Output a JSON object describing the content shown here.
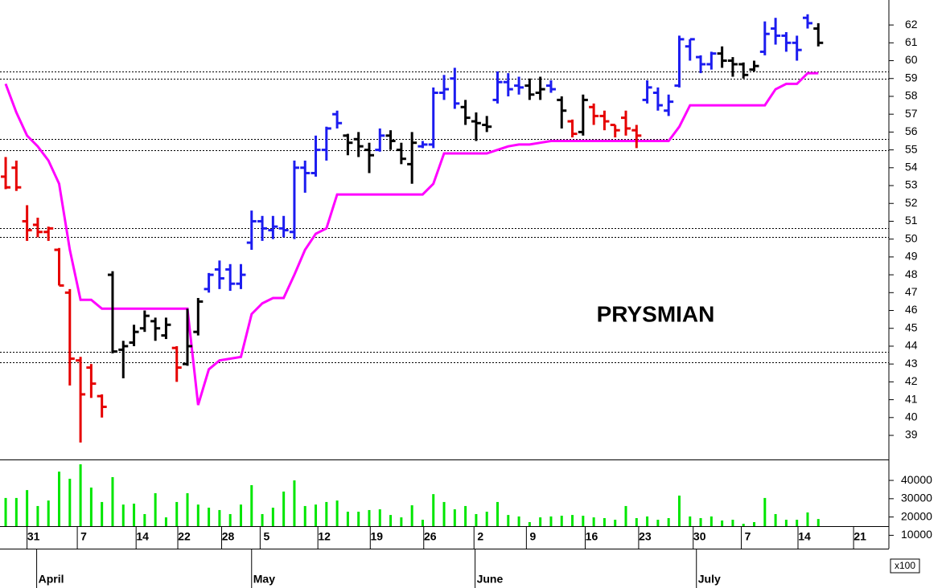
{
  "chart_data": {
    "type": "ohlc",
    "title": "PRYSMIAN",
    "open": [
      53.5,
      54.0,
      51.0,
      50.8,
      50.4,
      49.4,
      47.0,
      43.2,
      42.8,
      41.2,
      48.0,
      43.8,
      44.2,
      45.0,
      45.4,
      44.6,
      43.9,
      43.0,
      44.8,
      47.2,
      48.3,
      48.3,
      47.5,
      49.8,
      51.0,
      50.5,
      50.6,
      50.4,
      54.0,
      53.7,
      55.0,
      57.0,
      55.8,
      55.6,
      55.0,
      55.0,
      55.8,
      55.0,
      54.2,
      55.2,
      55.3,
      58.2,
      59.0,
      57.4,
      56.6,
      56.4,
      57.8,
      58.8,
      58.6,
      58.6,
      58.2,
      58.6,
      57.8,
      56.6,
      56.0,
      57.4,
      56.9,
      56.4,
      56.8,
      56.1,
      57.8,
      58.2,
      57.2,
      58.6,
      60.8,
      60.2,
      59.8,
      60.4,
      60.0,
      59.8,
      59.5,
      60.5,
      61.8,
      61.4,
      61.0,
      62.4,
      61.8
    ],
    "high": [
      54.6,
      54.4,
      51.9,
      51.2,
      50.7,
      49.5,
      47.2,
      43.4,
      43.0,
      41.3,
      48.2,
      44.3,
      45.2,
      46.0,
      45.6,
      45.6,
      44.0,
      46.1,
      46.7,
      48.1,
      48.8,
      48.6,
      48.6,
      51.6,
      51.3,
      51.3,
      51.3,
      54.4,
      54.4,
      55.8,
      56.3,
      57.2,
      55.9,
      56.0,
      55.4,
      56.2,
      56.1,
      55.4,
      56.0,
      55.5,
      58.5,
      59.2,
      59.6,
      57.8,
      57.1,
      56.9,
      59.4,
      59.3,
      59.1,
      59.0,
      59.1,
      58.9,
      58.0,
      56.7,
      58.1,
      57.6,
      57.2,
      56.4,
      57.2,
      56.4,
      58.9,
      58.5,
      58.1,
      61.4,
      61.2,
      60.3,
      60.5,
      60.8,
      60.2,
      59.9,
      60.0,
      62.2,
      62.4,
      61.6,
      61.4,
      62.6,
      62.1
    ],
    "low": [
      52.8,
      52.7,
      49.9,
      50.1,
      49.9,
      47.4,
      41.8,
      38.6,
      41.1,
      40.0,
      43.6,
      42.2,
      44.0,
      44.8,
      44.3,
      44.4,
      42.0,
      42.9,
      44.6,
      47.0,
      47.2,
      47.1,
      47.2,
      49.4,
      49.9,
      50.0,
      50.1,
      50.0,
      52.6,
      53.5,
      54.4,
      56.2,
      54.7,
      54.6,
      53.7,
      54.9,
      55.0,
      54.2,
      53.1,
      55.1,
      55.1,
      57.8,
      57.3,
      56.4,
      55.5,
      56.0,
      57.6,
      58.0,
      58.1,
      57.8,
      57.8,
      58.2,
      56.2,
      55.7,
      55.8,
      56.4,
      56.1,
      55.7,
      55.8,
      55.1,
      57.6,
      57.2,
      56.9,
      58.5,
      60.0,
      59.3,
      59.5,
      59.6,
      59.1,
      59.0,
      59.4,
      60.3,
      60.9,
      60.5,
      60.0,
      61.8,
      60.8
    ],
    "close": [
      52.9,
      52.9,
      50.5,
      50.4,
      50.6,
      47.4,
      43.3,
      41.3,
      41.9,
      40.6,
      43.7,
      44.0,
      44.8,
      45.7,
      45.0,
      45.2,
      42.8,
      44.0,
      46.5,
      48.0,
      47.8,
      47.5,
      48.0,
      51.0,
      50.6,
      50.7,
      50.5,
      54.0,
      53.7,
      55.0,
      56.2,
      56.5,
      55.4,
      55.2,
      54.7,
      55.8,
      55.5,
      54.5,
      55.4,
      55.3,
      58.2,
      58.4,
      57.6,
      56.8,
      56.5,
      56.3,
      58.8,
      58.4,
      58.5,
      58.1,
      58.4,
      58.4,
      57.2,
      55.9,
      57.8,
      56.9,
      56.6,
      56.1,
      56.2,
      55.8,
      58.5,
      57.5,
      57.7,
      61.2,
      61.2,
      59.8,
      60.4,
      60.0,
      59.8,
      59.2,
      59.7,
      61.5,
      61.4,
      61.0,
      60.6,
      62.1,
      61.0
    ],
    "bar_colors": [
      "#e60000",
      "#e60000",
      "#e60000",
      "#e60000",
      "#e60000",
      "#e60000",
      "#e60000",
      "#e60000",
      "#e60000",
      "#e60000",
      "#000000",
      "#000000",
      "#000000",
      "#000000",
      "#000000",
      "#000000",
      "#e60000",
      "#000000",
      "#000000",
      "#1c1cf0",
      "#1c1cf0",
      "#1c1cf0",
      "#1c1cf0",
      "#1c1cf0",
      "#1c1cf0",
      "#1c1cf0",
      "#1c1cf0",
      "#1c1cf0",
      "#1c1cf0",
      "#1c1cf0",
      "#1c1cf0",
      "#1c1cf0",
      "#000000",
      "#000000",
      "#000000",
      "#1c1cf0",
      "#000000",
      "#000000",
      "#000000",
      "#1c1cf0",
      "#1c1cf0",
      "#1c1cf0",
      "#1c1cf0",
      "#000000",
      "#000000",
      "#000000",
      "#1c1cf0",
      "#1c1cf0",
      "#1c1cf0",
      "#000000",
      "#000000",
      "#1c1cf0",
      "#000000",
      "#e60000",
      "#000000",
      "#e60000",
      "#e60000",
      "#e60000",
      "#e60000",
      "#e60000",
      "#1c1cf0",
      "#1c1cf0",
      "#1c1cf0",
      "#1c1cf0",
      "#1c1cf0",
      "#1c1cf0",
      "#1c1cf0",
      "#000000",
      "#000000",
      "#000000",
      "#000000",
      "#1c1cf0",
      "#1c1cf0",
      "#1c1cf0",
      "#1c1cf0",
      "#1c1cf0",
      "#000000"
    ],
    "stop_line": {
      "color": "#ff00ff",
      "values": [
        58.7,
        57.1,
        55.8,
        55.2,
        54.4,
        53.1,
        49.4,
        46.6,
        46.6,
        46.1,
        46.1,
        46.1,
        46.1,
        46.1,
        46.1,
        46.1,
        46.1,
        46.1,
        40.7,
        42.7,
        43.2,
        43.3,
        43.4,
        45.8,
        46.4,
        46.7,
        46.7,
        48.0,
        49.4,
        50.3,
        50.6,
        52.5,
        52.5,
        52.5,
        52.5,
        52.5,
        52.5,
        52.5,
        52.5,
        52.5,
        53.1,
        54.8,
        54.8,
        54.8,
        54.8,
        54.8,
        55.0,
        55.2,
        55.3,
        55.3,
        55.4,
        55.5,
        55.5,
        55.5,
        55.5,
        55.5,
        55.5,
        55.5,
        55.5,
        55.5,
        55.5,
        55.5,
        55.5,
        56.3,
        57.5,
        57.5,
        57.5,
        57.5,
        57.5,
        57.5,
        57.5,
        57.5,
        58.4,
        58.7,
        58.7,
        59.3,
        59.3
      ]
    },
    "levels": [
      59.4,
      59.0,
      55.6,
      55.0,
      50.6,
      50.1,
      43.7,
      43.1
    ],
    "level_color": "#000000",
    "xlim": [
      -0.53,
      82.6
    ],
    "xticks": [
      {
        "value": 2.6,
        "label": "31"
      },
      {
        "value": 7.3,
        "label": "7"
      },
      {
        "value": 12.8,
        "label": "14"
      },
      {
        "value": 16.7,
        "label": "22"
      },
      {
        "value": 20.8,
        "label": "28"
      },
      {
        "value": 24.4,
        "label": "5"
      },
      {
        "value": 29.8,
        "label": "12"
      },
      {
        "value": 34.7,
        "label": "19"
      },
      {
        "value": 39.7,
        "label": "26"
      },
      {
        "value": 44.4,
        "label": "2"
      },
      {
        "value": 49.3,
        "label": "9"
      },
      {
        "value": 54.8,
        "label": "16"
      },
      {
        "value": 59.8,
        "label": "23"
      },
      {
        "value": 64.9,
        "label": "30"
      },
      {
        "value": 69.4,
        "label": "7"
      },
      {
        "value": 74.7,
        "label": "14"
      },
      {
        "value": 79.9,
        "label": "21"
      }
    ],
    "months": [
      {
        "value": 2.9,
        "label": "April"
      },
      {
        "value": 23.0,
        "label": "May"
      },
      {
        "value": 43.9,
        "label": "June"
      },
      {
        "value": 64.6,
        "label": "July"
      }
    ],
    "ylim": [
      37.65,
      63.4
    ],
    "yticks": [
      39,
      40,
      41,
      42,
      43,
      44,
      45,
      46,
      47,
      48,
      49,
      50,
      51,
      52,
      53,
      54,
      55,
      56,
      57,
      58,
      59,
      60,
      61,
      62
    ],
    "volume": {
      "color": "#00e600",
      "values": [
        30400,
        30400,
        34700,
        26000,
        29000,
        44800,
        40900,
        48800,
        36100,
        28200,
        41800,
        26800,
        27300,
        21600,
        33000,
        19800,
        28200,
        33000,
        26800,
        25100,
        23800,
        21600,
        26800,
        37400,
        21600,
        25100,
        33900,
        40000,
        26000,
        26800,
        28200,
        29000,
        22900,
        22900,
        23800,
        24200,
        21100,
        19800,
        26400,
        18500,
        32500,
        28200,
        24200,
        26000,
        21600,
        22900,
        28200,
        21100,
        20300,
        17200,
        19800,
        20300,
        20700,
        21100,
        20700,
        19800,
        19400,
        18500,
        26000,
        19400,
        20300,
        18500,
        19400,
        31700,
        20300,
        19400,
        20300,
        18100,
        18500,
        16300,
        17200,
        30400,
        21600,
        18500,
        18500,
        22500,
        18900
      ],
      "ylim": [
        15000,
        51000
      ],
      "yticks": [
        10000,
        20000,
        30000,
        40000
      ],
      "unit_label": "x100"
    }
  }
}
